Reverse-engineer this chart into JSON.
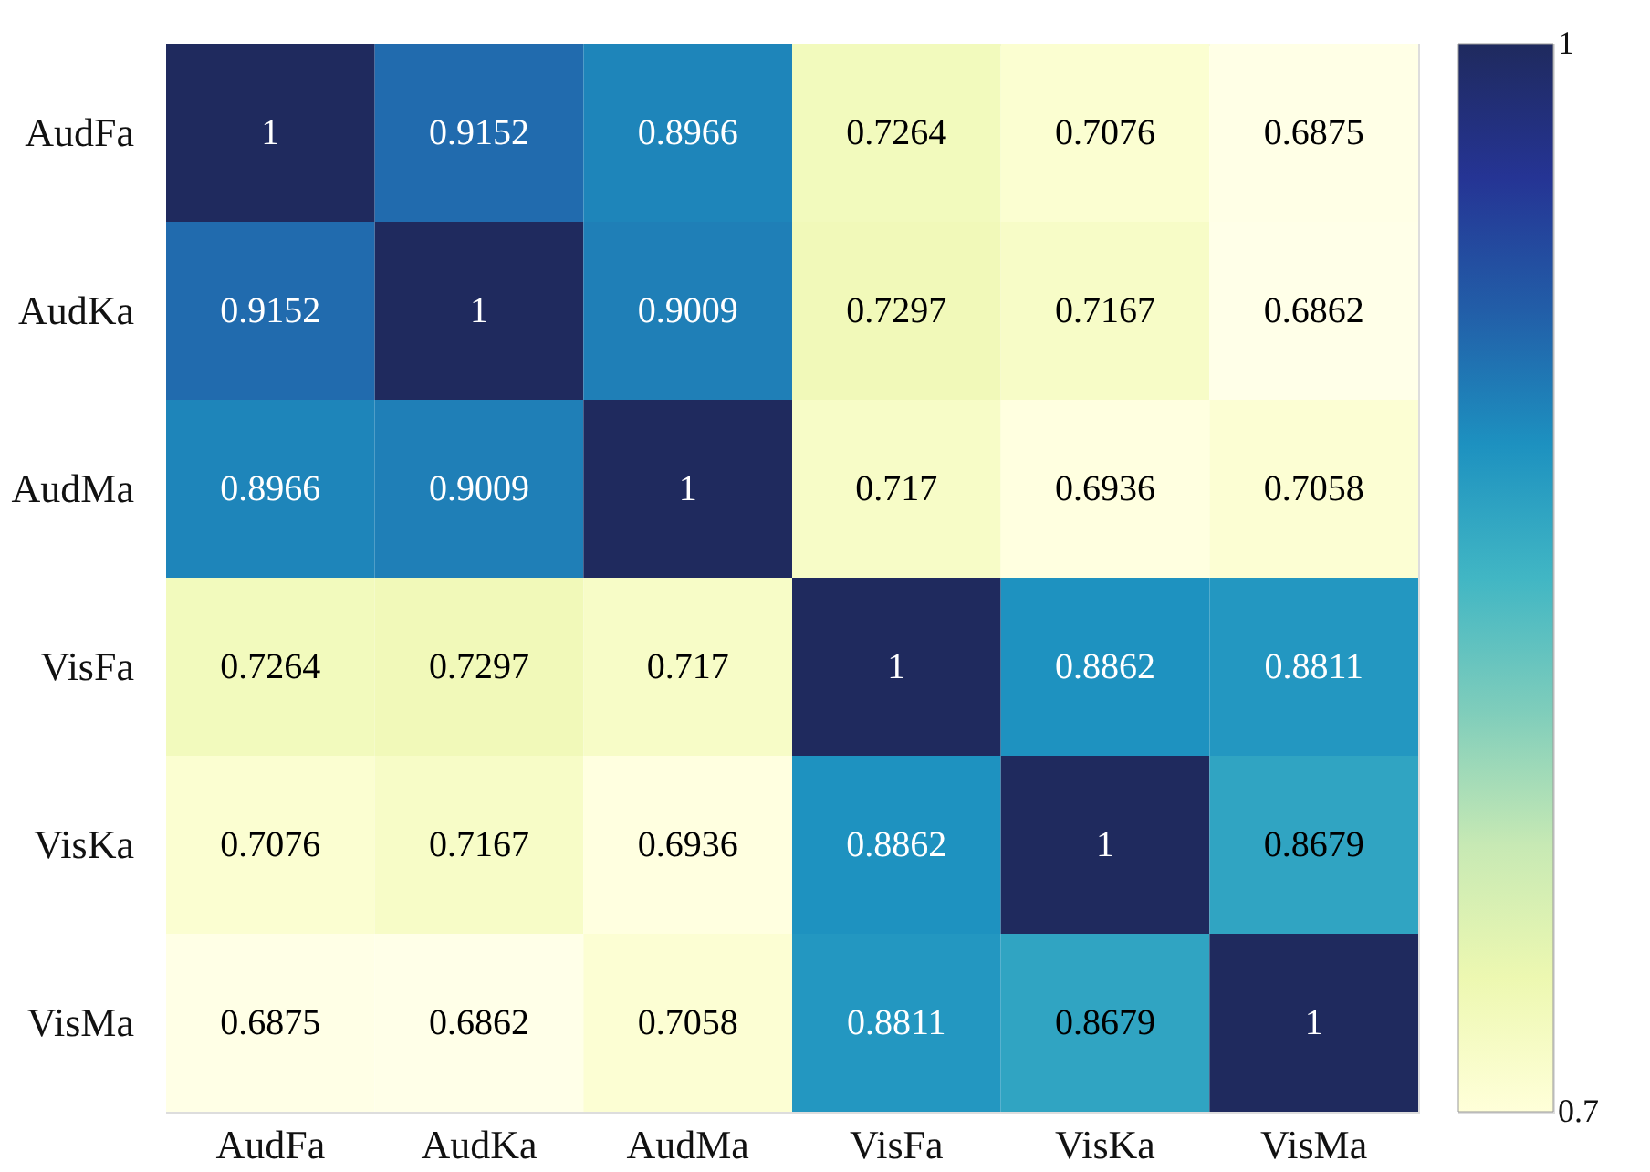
{
  "chart_data": {
    "type": "heatmap",
    "categories": [
      "AudFa",
      "AudKa",
      "AudMa",
      "VisFa",
      "VisKa",
      "VisMa"
    ],
    "y_categories": [
      "AudFa",
      "AudKa",
      "AudMa",
      "VisFa",
      "VisKa",
      "VisMa"
    ],
    "cells": [
      [
        1,
        0.9152,
        0.8966,
        0.7264,
        0.7076,
        0.6875
      ],
      [
        0.9152,
        1,
        0.9009,
        0.7297,
        0.7167,
        0.6862
      ],
      [
        0.8966,
        0.9009,
        1,
        0.717,
        0.6936,
        0.7058
      ],
      [
        0.7264,
        0.7297,
        0.717,
        1,
        0.8862,
        0.8811
      ],
      [
        0.7076,
        0.7167,
        0.6936,
        0.8862,
        1,
        0.8679
      ],
      [
        0.6875,
        0.6862,
        0.7058,
        0.8811,
        0.8679,
        1
      ]
    ],
    "clim": [
      0.7,
      1
    ],
    "cticks": [
      1,
      0.7
    ],
    "data_labels": true
  }
}
